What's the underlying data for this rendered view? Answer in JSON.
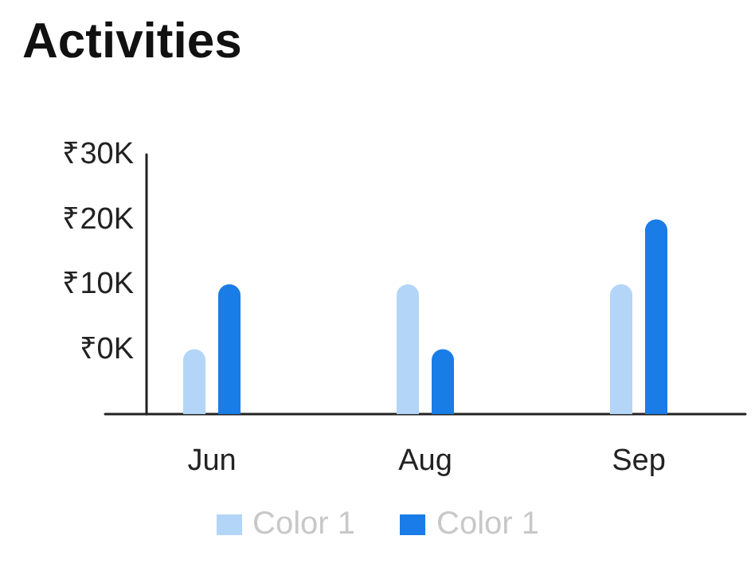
{
  "chart_data": {
    "type": "bar",
    "title": "Activities",
    "categories": [
      "Jun",
      "Aug",
      "Sep"
    ],
    "series": [
      {
        "name": "Color 1",
        "color": "#b3d5f7",
        "values": [
          10000,
          20000,
          20000
        ],
        "base": [
          -10000,
          -10000,
          -10000
        ]
      },
      {
        "name": "Color 1",
        "color": "#1a7ce6",
        "values": [
          20000,
          10000,
          30000
        ],
        "base": [
          -10000,
          -10000,
          -10000
        ]
      }
    ],
    "ylim": [
      -10000,
      30000
    ],
    "yticks": [
      {
        "value": 0,
        "label": "₹0K"
      },
      {
        "value": 10000,
        "label": "₹10K"
      },
      {
        "value": 20000,
        "label": "₹20K"
      },
      {
        "value": 30000,
        "label": "₹30K"
      }
    ],
    "grid": false,
    "legend": "bottom"
  }
}
